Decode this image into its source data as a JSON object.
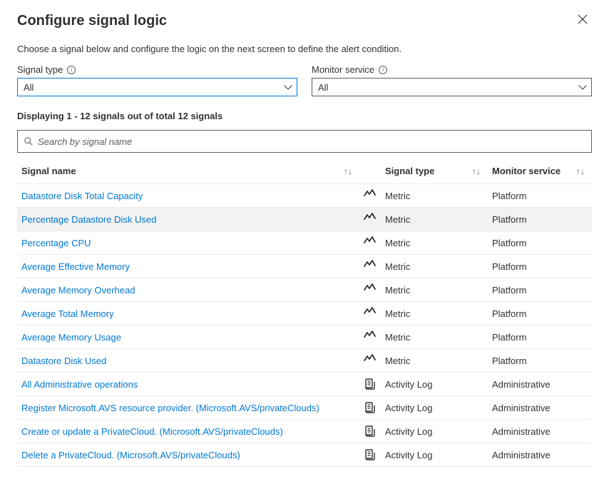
{
  "title": "Configure signal logic",
  "description": "Choose a signal below and configure the logic on the next screen to define the alert condition.",
  "filters": {
    "signalType": {
      "label": "Signal type",
      "value": "All"
    },
    "monitorService": {
      "label": "Monitor service",
      "value": "All"
    }
  },
  "countText": "Displaying 1 - 12 signals out of total 12 signals",
  "search": {
    "placeholder": "Search by signal name"
  },
  "columns": {
    "name": "Signal name",
    "type": "Signal type",
    "service": "Monitor service"
  },
  "rows": [
    {
      "name": "Datastore Disk Total Capacity",
      "type": "Metric",
      "service": "Platform",
      "icon": "metric",
      "highlighted": false
    },
    {
      "name": "Percentage Datastore Disk Used",
      "type": "Metric",
      "service": "Platform",
      "icon": "metric",
      "highlighted": true
    },
    {
      "name": "Percentage CPU",
      "type": "Metric",
      "service": "Platform",
      "icon": "metric",
      "highlighted": false
    },
    {
      "name": "Average Effective Memory",
      "type": "Metric",
      "service": "Platform",
      "icon": "metric",
      "highlighted": false
    },
    {
      "name": "Average Memory Overhead",
      "type": "Metric",
      "service": "Platform",
      "icon": "metric",
      "highlighted": false
    },
    {
      "name": "Average Total Memory",
      "type": "Metric",
      "service": "Platform",
      "icon": "metric",
      "highlighted": false
    },
    {
      "name": "Average Memory Usage",
      "type": "Metric",
      "service": "Platform",
      "icon": "metric",
      "highlighted": false
    },
    {
      "name": "Datastore Disk Used",
      "type": "Metric",
      "service": "Platform",
      "icon": "metric",
      "highlighted": false
    },
    {
      "name": "All Administrative operations",
      "type": "Activity Log",
      "service": "Administrative",
      "icon": "log",
      "highlighted": false
    },
    {
      "name": "Register Microsoft.AVS resource provider. (Microsoft.AVS/privateClouds)",
      "type": "Activity Log",
      "service": "Administrative",
      "icon": "log",
      "highlighted": false
    },
    {
      "name": "Create or update a PrivateCloud. (Microsoft.AVS/privateClouds)",
      "type": "Activity Log",
      "service": "Administrative",
      "icon": "log",
      "highlighted": false
    },
    {
      "name": "Delete a PrivateCloud. (Microsoft.AVS/privateClouds)",
      "type": "Activity Log",
      "service": "Administrative",
      "icon": "log",
      "highlighted": false
    }
  ]
}
